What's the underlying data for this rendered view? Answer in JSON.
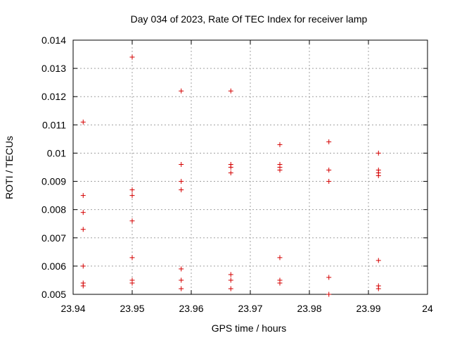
{
  "chart_data": {
    "type": "scatter",
    "title": "Day 034 of 2023, Rate Of TEC Index for receiver lamp",
    "xlabel": "GPS time / hours",
    "ylabel": "ROTI / TECUs",
    "xlim": [
      23.94,
      24.0
    ],
    "ylim": [
      0.005,
      0.014
    ],
    "x_ticks": [
      "23.94",
      "23.95",
      "23.96",
      "23.97",
      "23.98",
      "23.99",
      "24"
    ],
    "y_ticks": [
      "0.005",
      "0.006",
      "0.007",
      "0.008",
      "0.009",
      "0.01",
      "0.011",
      "0.012",
      "0.013",
      "0.014"
    ],
    "grid": true,
    "marker": "+",
    "marker_color": "#d40000",
    "series": [
      {
        "points": [
          [
            23.9417,
            0.0111
          ],
          [
            23.9417,
            0.0085
          ],
          [
            23.9417,
            0.0079
          ],
          [
            23.9417,
            0.0073
          ],
          [
            23.9417,
            0.006
          ],
          [
            23.9417,
            0.0054
          ],
          [
            23.9417,
            0.0053
          ],
          [
            23.95,
            0.0134
          ],
          [
            23.95,
            0.0087
          ],
          [
            23.95,
            0.0085
          ],
          [
            23.95,
            0.0076
          ],
          [
            23.95,
            0.0063
          ],
          [
            23.95,
            0.0055
          ],
          [
            23.95,
            0.0054
          ],
          [
            23.9583,
            0.0122
          ],
          [
            23.9583,
            0.0096
          ],
          [
            23.9583,
            0.009
          ],
          [
            23.9583,
            0.0087
          ],
          [
            23.9583,
            0.0059
          ],
          [
            23.9583,
            0.0055
          ],
          [
            23.9583,
            0.0052
          ],
          [
            23.9667,
            0.0122
          ],
          [
            23.9667,
            0.0096
          ],
          [
            23.9667,
            0.0095
          ],
          [
            23.9667,
            0.0093
          ],
          [
            23.9667,
            0.0057
          ],
          [
            23.9667,
            0.0055
          ],
          [
            23.9667,
            0.0052
          ],
          [
            23.975,
            0.0103
          ],
          [
            23.975,
            0.0096
          ],
          [
            23.975,
            0.0095
          ],
          [
            23.975,
            0.0094
          ],
          [
            23.975,
            0.0063
          ],
          [
            23.975,
            0.0055
          ],
          [
            23.975,
            0.0054
          ],
          [
            23.9833,
            0.0104
          ],
          [
            23.9833,
            0.0094
          ],
          [
            23.9833,
            0.009
          ],
          [
            23.9833,
            0.0056
          ],
          [
            23.9833,
            0.005
          ],
          [
            23.9917,
            0.01
          ],
          [
            23.9917,
            0.0094
          ],
          [
            23.9917,
            0.0093
          ],
          [
            23.9917,
            0.0092
          ],
          [
            23.9917,
            0.0062
          ],
          [
            23.9917,
            0.0053
          ],
          [
            23.9917,
            0.0052
          ]
        ]
      }
    ]
  }
}
